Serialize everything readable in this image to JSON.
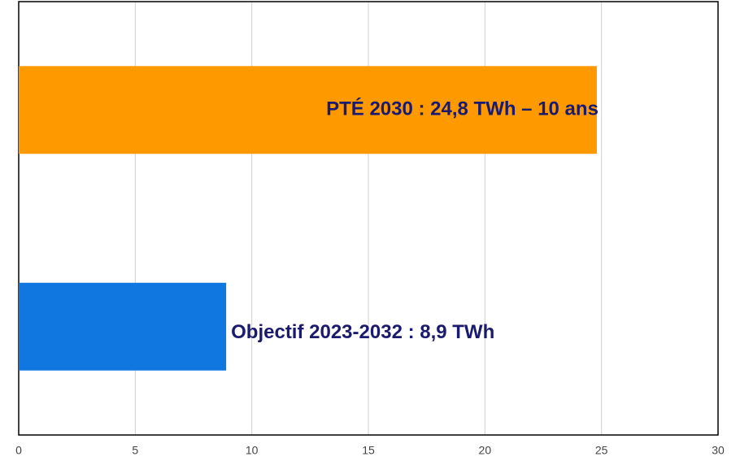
{
  "chart_data": {
    "type": "hbar",
    "values": [
      24.8,
      8.9
    ],
    "value_labels": [
      "PTÉ 2030  : 24,8 TWh – 10 ans",
      "Objectif 2023-2032 : 8,9 TWh"
    ],
    "colors": [
      "#ff9900",
      "#1177e0"
    ],
    "xlim": [
      0,
      30
    ],
    "xticks": [
      0,
      5,
      10,
      15,
      20,
      25,
      30
    ],
    "grid": true
  }
}
